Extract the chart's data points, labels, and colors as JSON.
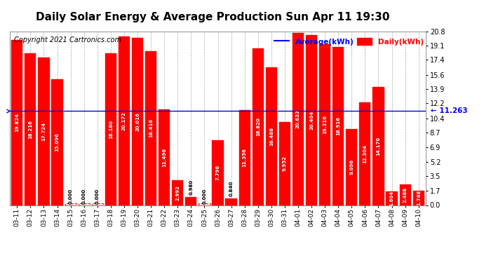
{
  "title": "Daily Solar Energy & Average Production Sun Apr 11 19:30",
  "copyright": "Copyright 2021 Cartronics.com",
  "average_label": "Average(kWh)",
  "daily_label": "Daily(kWh)",
  "average_value": 11.263,
  "categories": [
    "03-11",
    "03-12",
    "03-13",
    "03-14",
    "03-15",
    "03-16",
    "03-17",
    "03-18",
    "03-19",
    "03-20",
    "03-21",
    "03-22",
    "03-23",
    "03-24",
    "03-25",
    "03-26",
    "03-27",
    "03-28",
    "03-29",
    "03-30",
    "03-31",
    "04-01",
    "04-02",
    "04-03",
    "04-04",
    "04-05",
    "04-06",
    "04-07",
    "04-08",
    "04-09",
    "04-10"
  ],
  "values": [
    19.824,
    18.216,
    17.724,
    15.096,
    0.0,
    0.0,
    0.0,
    18.18,
    20.172,
    20.016,
    18.416,
    11.496,
    2.992,
    0.98,
    0.0,
    7.796,
    0.84,
    11.356,
    18.82,
    16.488,
    9.952,
    20.632,
    20.404,
    19.316,
    18.916,
    9.096,
    12.304,
    14.176,
    1.604,
    2.488,
    1.748
  ],
  "bar_color": "#FF0000",
  "avg_line_color": "#0000FF",
  "title_color": "#000000",
  "title_fontsize": 11,
  "ylabel_right_ticks": [
    0.0,
    1.7,
    3.5,
    5.2,
    6.9,
    8.7,
    10.4,
    12.2,
    13.9,
    15.6,
    17.4,
    19.1,
    20.8
  ],
  "ylim": [
    0,
    20.8
  ],
  "background_color": "#FFFFFF",
  "grid_color": "#AAAAAA",
  "value_fontsize": 5.0,
  "avg_fontsize": 7.5,
  "copyright_fontsize": 7,
  "legend_avg_color": "#0000FF",
  "legend_daily_color": "#FF0000"
}
